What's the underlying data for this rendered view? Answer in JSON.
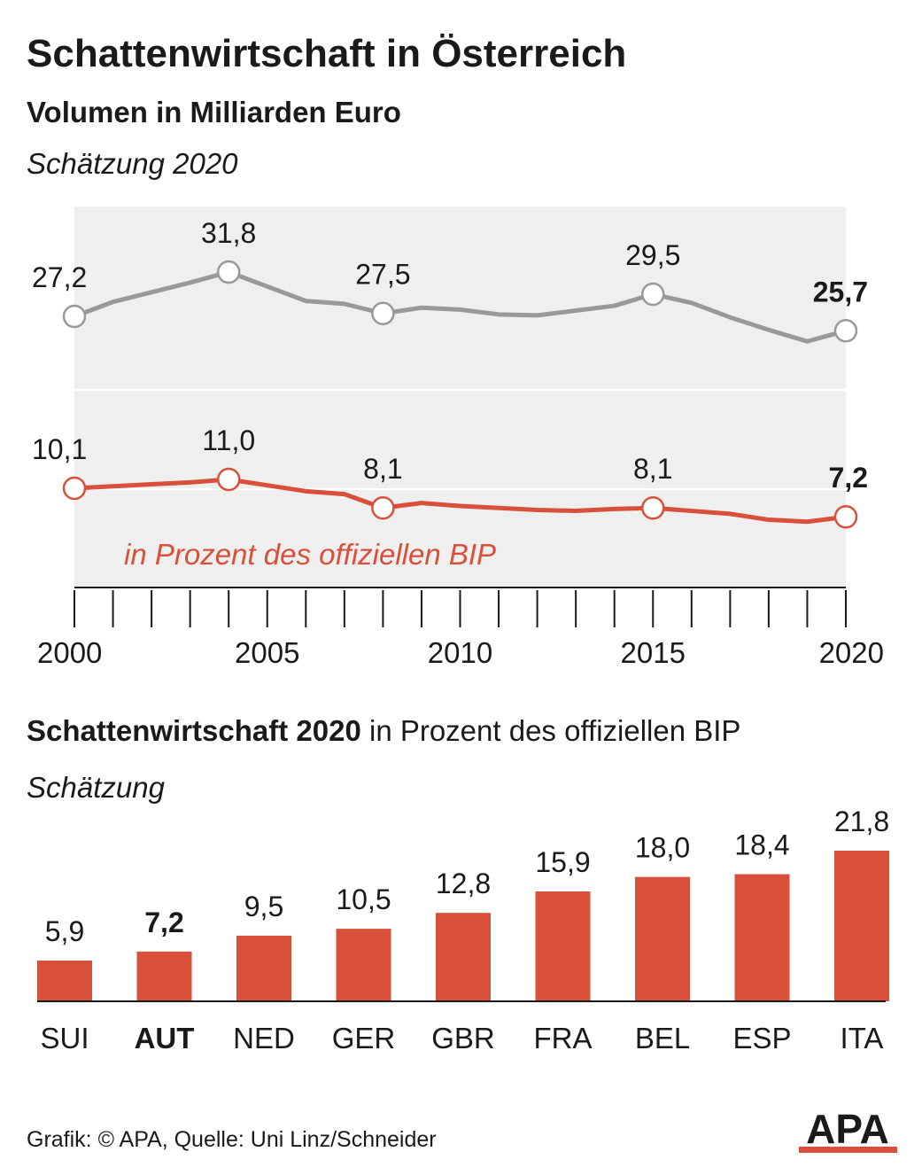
{
  "title": "Schattenwirtschaft in Österreich",
  "subtitle": "Volumen in Milliarden Euro",
  "note_top": "Schätzung 2020",
  "section2_bold": "Schattenwirtschaft 2020",
  "section2_rest": " in Prozent des offiziellen BIP",
  "note_bottom": "Schätzung",
  "source": "Grafik: © APA, Quelle: Uni Linz/Schneider",
  "logo_text": "APA",
  "colors": {
    "gray_line": "#999999",
    "red": "#d9503a",
    "area": "#efefef",
    "text": "#1a1a1a"
  },
  "chart_data": [
    {
      "type": "line",
      "x": [
        2000,
        2001,
        2002,
        2003,
        2004,
        2005,
        2006,
        2007,
        2008,
        2009,
        2010,
        2011,
        2012,
        2013,
        2014,
        2015,
        2016,
        2017,
        2018,
        2019,
        2020
      ],
      "xticks": [
        "2000",
        "2005",
        "2010",
        "2015",
        "2020"
      ],
      "series": [
        {
          "key": "volume",
          "values": [
            27.2,
            28.7,
            29.7,
            30.7,
            31.8,
            30.3,
            28.8,
            28.5,
            27.5,
            28.1,
            27.9,
            27.4,
            27.3,
            27.8,
            28.3,
            29.5,
            28.6,
            27.1,
            25.8,
            24.6,
            25.7
          ],
          "labels": [
            {
              "x": 2000,
              "text": "27,2"
            },
            {
              "x": 2004,
              "text": "31,8"
            },
            {
              "x": 2008,
              "text": "27,5"
            },
            {
              "x": 2015,
              "text": "29,5"
            },
            {
              "x": 2020,
              "text": "25,7",
              "bold": true
            }
          ]
        },
        {
          "key": "percent",
          "name": "in Prozent des offiziellen BIP",
          "values": [
            10.1,
            10.3,
            10.5,
            10.7,
            11.0,
            10.4,
            9.8,
            9.5,
            8.1,
            8.6,
            8.3,
            8.1,
            7.9,
            7.8,
            8.0,
            8.1,
            7.8,
            7.5,
            6.9,
            6.7,
            7.2
          ],
          "labels": [
            {
              "x": 2000,
              "text": "10,1"
            },
            {
              "x": 2004,
              "text": "11,0"
            },
            {
              "x": 2008,
              "text": "8,1"
            },
            {
              "x": 2015,
              "text": "8,1"
            },
            {
              "x": 2020,
              "text": "7,2",
              "bold": true
            }
          ]
        }
      ]
    },
    {
      "type": "bar",
      "categories": [
        "SUI",
        "AUT",
        "NED",
        "GER",
        "GBR",
        "FRA",
        "BEL",
        "ESP",
        "ITA"
      ],
      "values": [
        5.9,
        7.2,
        9.5,
        10.5,
        12.8,
        15.9,
        18.0,
        18.4,
        21.8
      ],
      "value_labels": [
        "5,9",
        "7,2",
        "9,5",
        "10,5",
        "12,8",
        "15,9",
        "18,0",
        "18,4",
        "21,8"
      ],
      "highlight": "AUT"
    }
  ]
}
